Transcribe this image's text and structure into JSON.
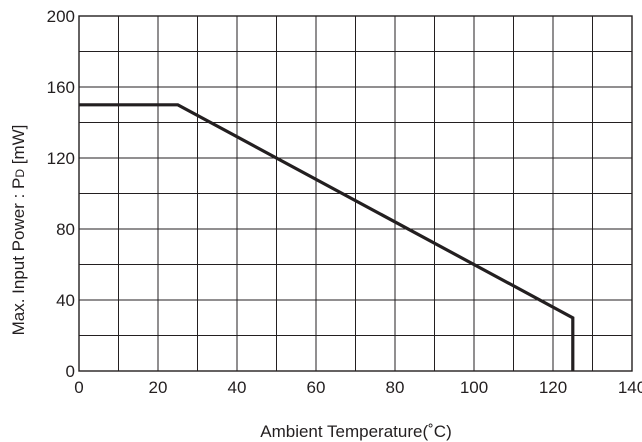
{
  "chart_data": {
    "type": "line",
    "title": "",
    "xlabel": "Ambient Temperature(˚C)",
    "ylabel_main": "Max. Input Power : P",
    "ylabel_sub": "D",
    "ylabel_unit": " [mW]",
    "xlim": [
      0,
      140
    ],
    "ylim": [
      0,
      200
    ],
    "x_ticks": [
      0,
      20,
      40,
      60,
      80,
      100,
      120,
      140
    ],
    "y_ticks": [
      0,
      40,
      80,
      120,
      160,
      200
    ],
    "x_grid_step": 10,
    "y_grid_step": 20,
    "grid": true,
    "series": [
      {
        "x": [
          0,
          25,
          125,
          125
        ],
        "y": [
          150,
          150,
          30,
          0
        ]
      }
    ]
  }
}
